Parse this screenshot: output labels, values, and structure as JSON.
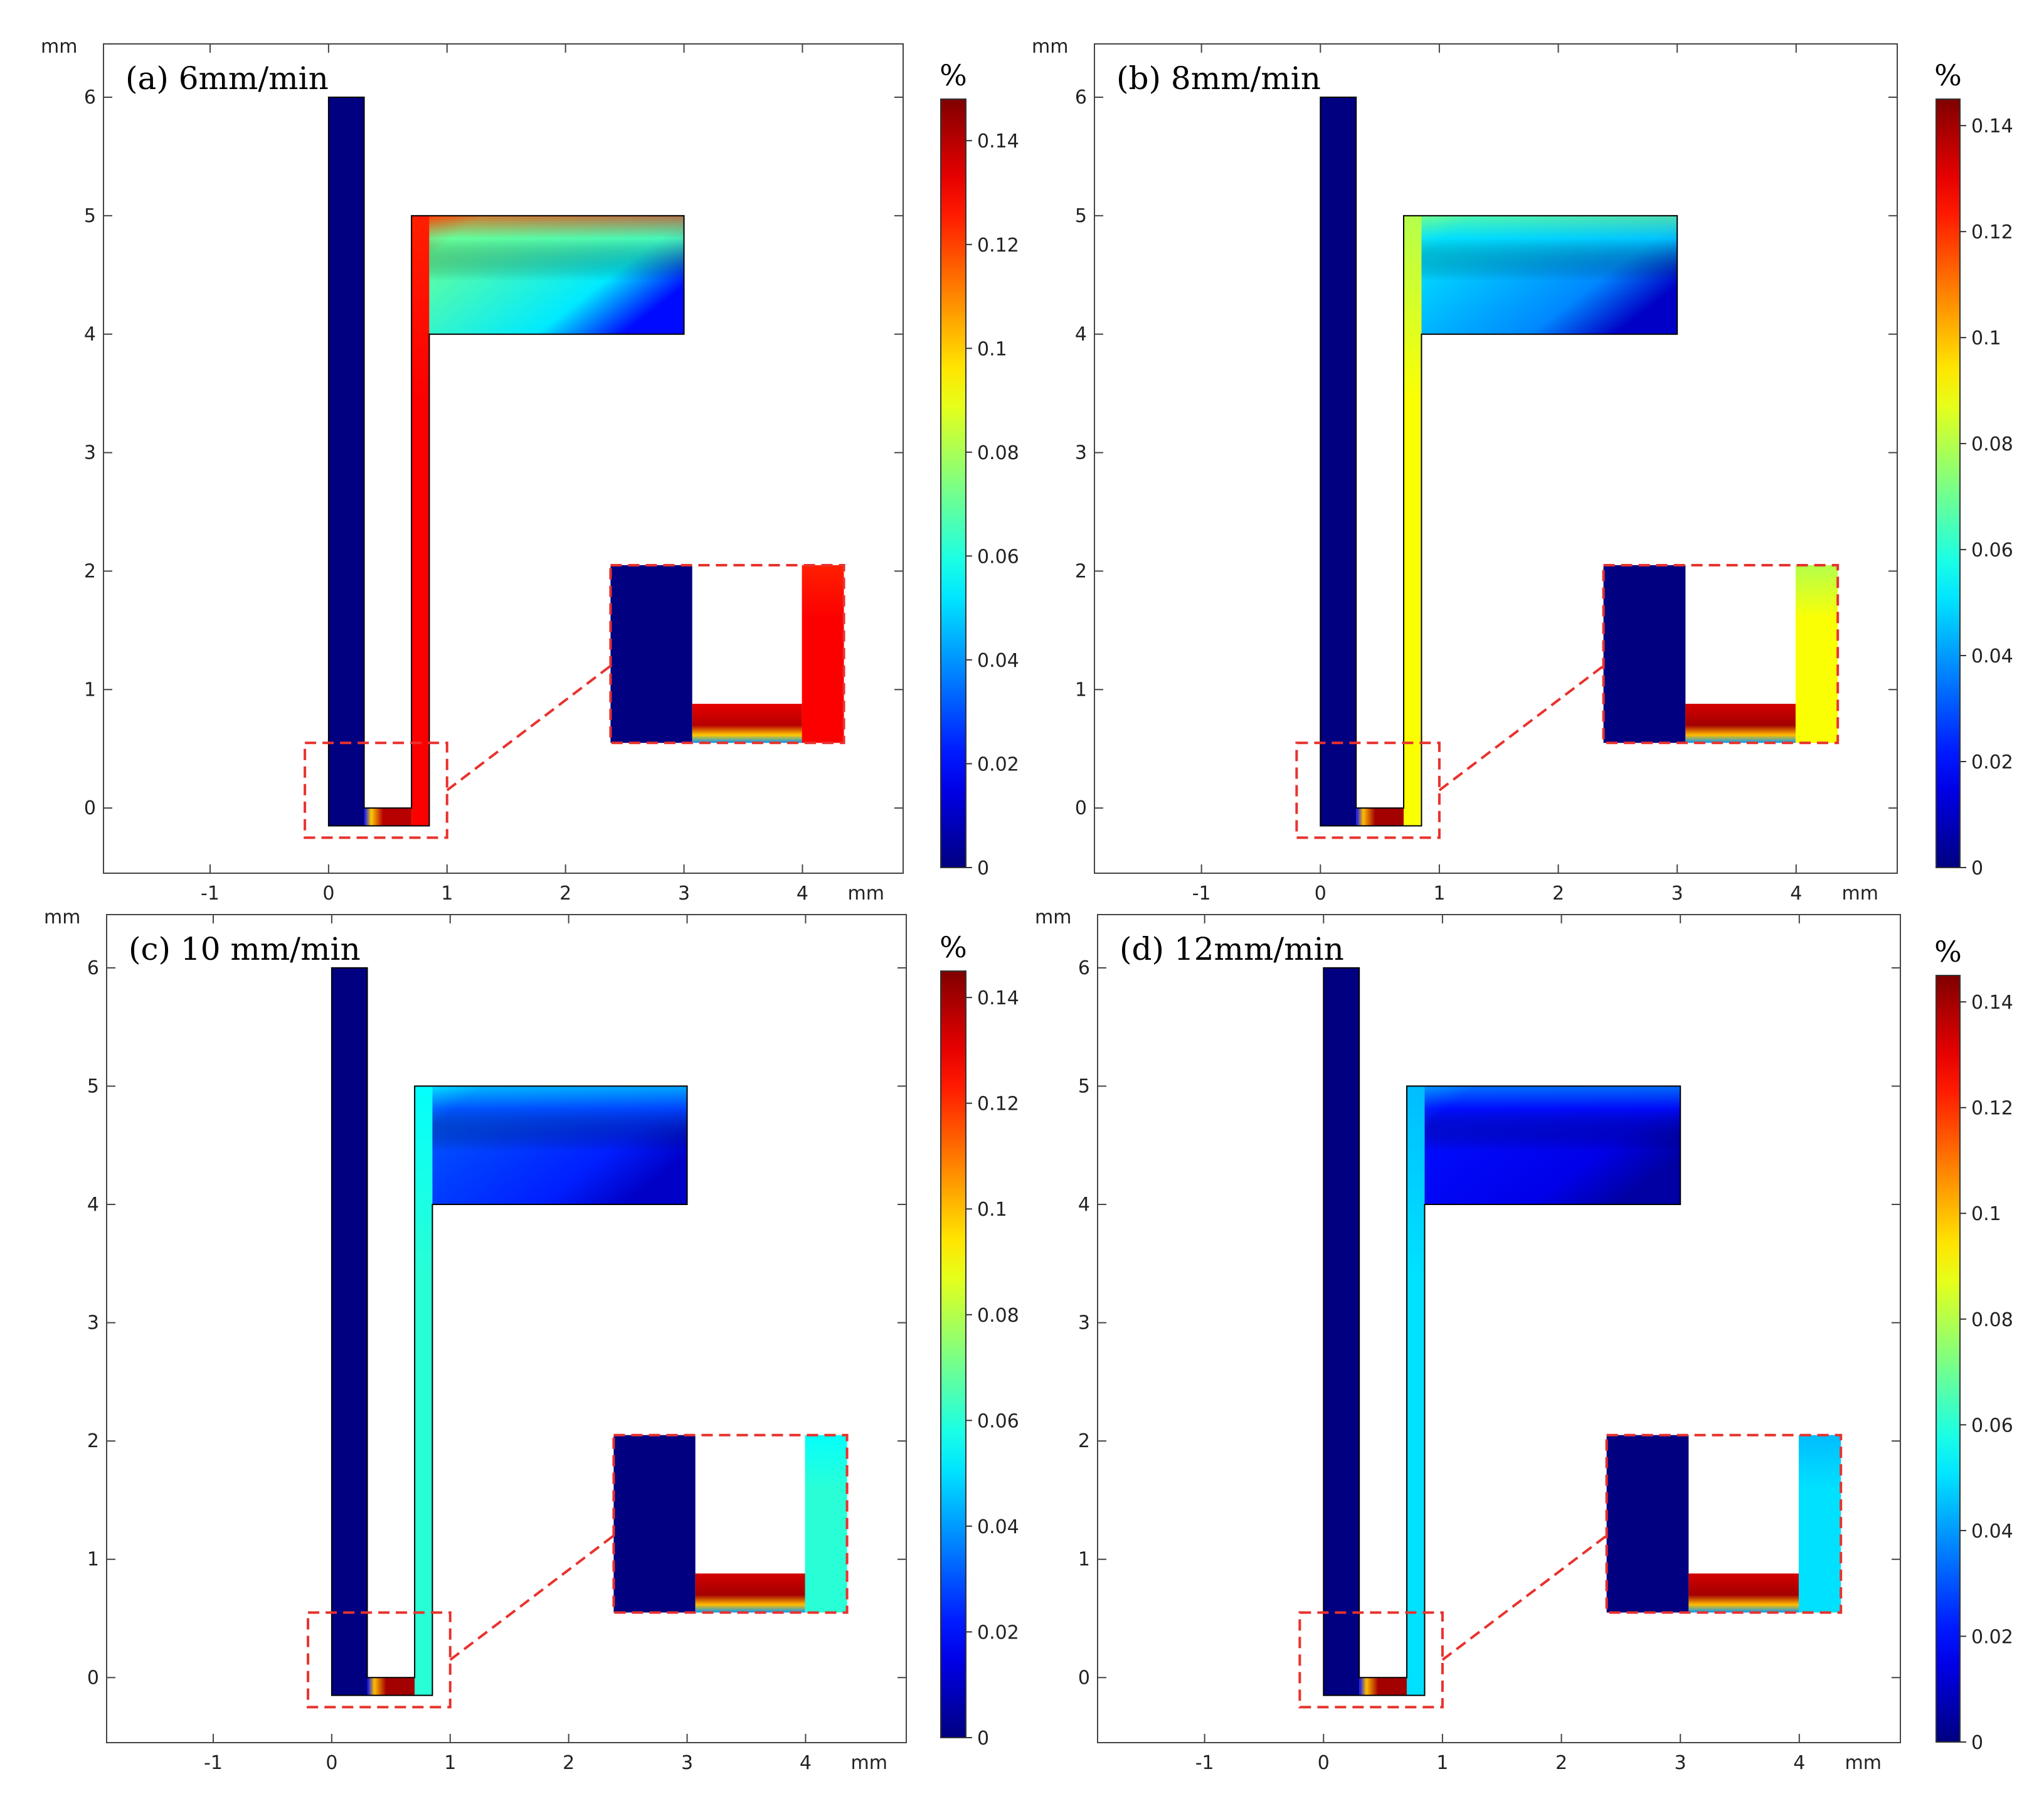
{
  "chart_data": [
    {
      "type": "heatmap",
      "title": "(a) 6mm/min",
      "x_unit": "mm",
      "y_unit": "mm",
      "x_ticks": [
        -1,
        0,
        1,
        2,
        3,
        4
      ],
      "y_ticks": [
        0,
        1,
        2,
        3,
        4,
        5,
        6
      ],
      "xlim": [
        -1.9,
        4.85
      ],
      "ylim": [
        -0.55,
        6.45
      ],
      "colorbar": {
        "unit": "%",
        "ticks": [
          0,
          0.02,
          0.04,
          0.06,
          0.08,
          0.1,
          0.12,
          0.14
        ],
        "range": [
          0,
          0.148
        ],
        "colormap": "jet"
      },
      "field": {
        "left_channel": 0.0,
        "right_channel": 0.13,
        "chamber_inlet": 0.12,
        "chamber_bulk": 0.07,
        "chamber_far_corner": 0.02,
        "bottom_hotspot": 0.14
      }
    },
    {
      "type": "heatmap",
      "title": "(b) 8mm/min",
      "x_unit": "mm",
      "y_unit": "mm",
      "x_ticks": [
        -1,
        0,
        1,
        2,
        3,
        4
      ],
      "y_ticks": [
        0,
        1,
        2,
        3,
        4,
        5,
        6
      ],
      "xlim": [
        -1.9,
        4.85
      ],
      "ylim": [
        -0.55,
        6.45
      ],
      "colorbar": {
        "unit": "%",
        "ticks": [
          0,
          0.02,
          0.04,
          0.06,
          0.08,
          0.1,
          0.12,
          0.14
        ],
        "range": [
          0,
          0.145
        ],
        "colormap": "jet"
      },
      "field": {
        "left_channel": 0.0,
        "right_channel": 0.09,
        "chamber_inlet": 0.07,
        "chamber_bulk": 0.05,
        "chamber_far_corner": 0.01,
        "bottom_hotspot": 0.14
      }
    },
    {
      "type": "heatmap",
      "title": "(c) 10 mm/min",
      "x_unit": "mm",
      "y_unit": "mm",
      "x_ticks": [
        -1,
        0,
        1,
        2,
        3,
        4
      ],
      "y_ticks": [
        0,
        1,
        2,
        3,
        4,
        5,
        6
      ],
      "xlim": [
        -1.9,
        4.85
      ],
      "ylim": [
        -0.55,
        6.45
      ],
      "colorbar": {
        "unit": "%",
        "ticks": [
          0,
          0.02,
          0.04,
          0.06,
          0.08,
          0.1,
          0.12,
          0.14
        ],
        "range": [
          0,
          0.145
        ],
        "colormap": "jet"
      },
      "field": {
        "left_channel": 0.0,
        "right_channel": 0.06,
        "chamber_inlet": 0.05,
        "chamber_bulk": 0.03,
        "chamber_far_corner": 0.01,
        "bottom_hotspot": 0.14
      }
    },
    {
      "type": "heatmap",
      "title": "(d) 12mm/min",
      "x_unit": "mm",
      "y_unit": "mm",
      "x_ticks": [
        -1,
        0,
        1,
        2,
        3,
        4
      ],
      "y_ticks": [
        0,
        1,
        2,
        3,
        4,
        5,
        6
      ],
      "xlim": [
        -1.9,
        4.85
      ],
      "ylim": [
        -0.55,
        6.45
      ],
      "colorbar": {
        "unit": "%",
        "ticks": [
          0,
          0.02,
          0.04,
          0.06,
          0.08,
          0.1,
          0.12,
          0.14
        ],
        "range": [
          0,
          0.145
        ],
        "colormap": "jet"
      },
      "field": {
        "left_channel": 0.0,
        "right_channel": 0.05,
        "chamber_inlet": 0.04,
        "chamber_bulk": 0.02,
        "chamber_far_corner": 0.005,
        "bottom_hotspot": 0.14
      }
    }
  ],
  "colors": {
    "zoom_box": "#e8322e",
    "outline": "#000000"
  }
}
